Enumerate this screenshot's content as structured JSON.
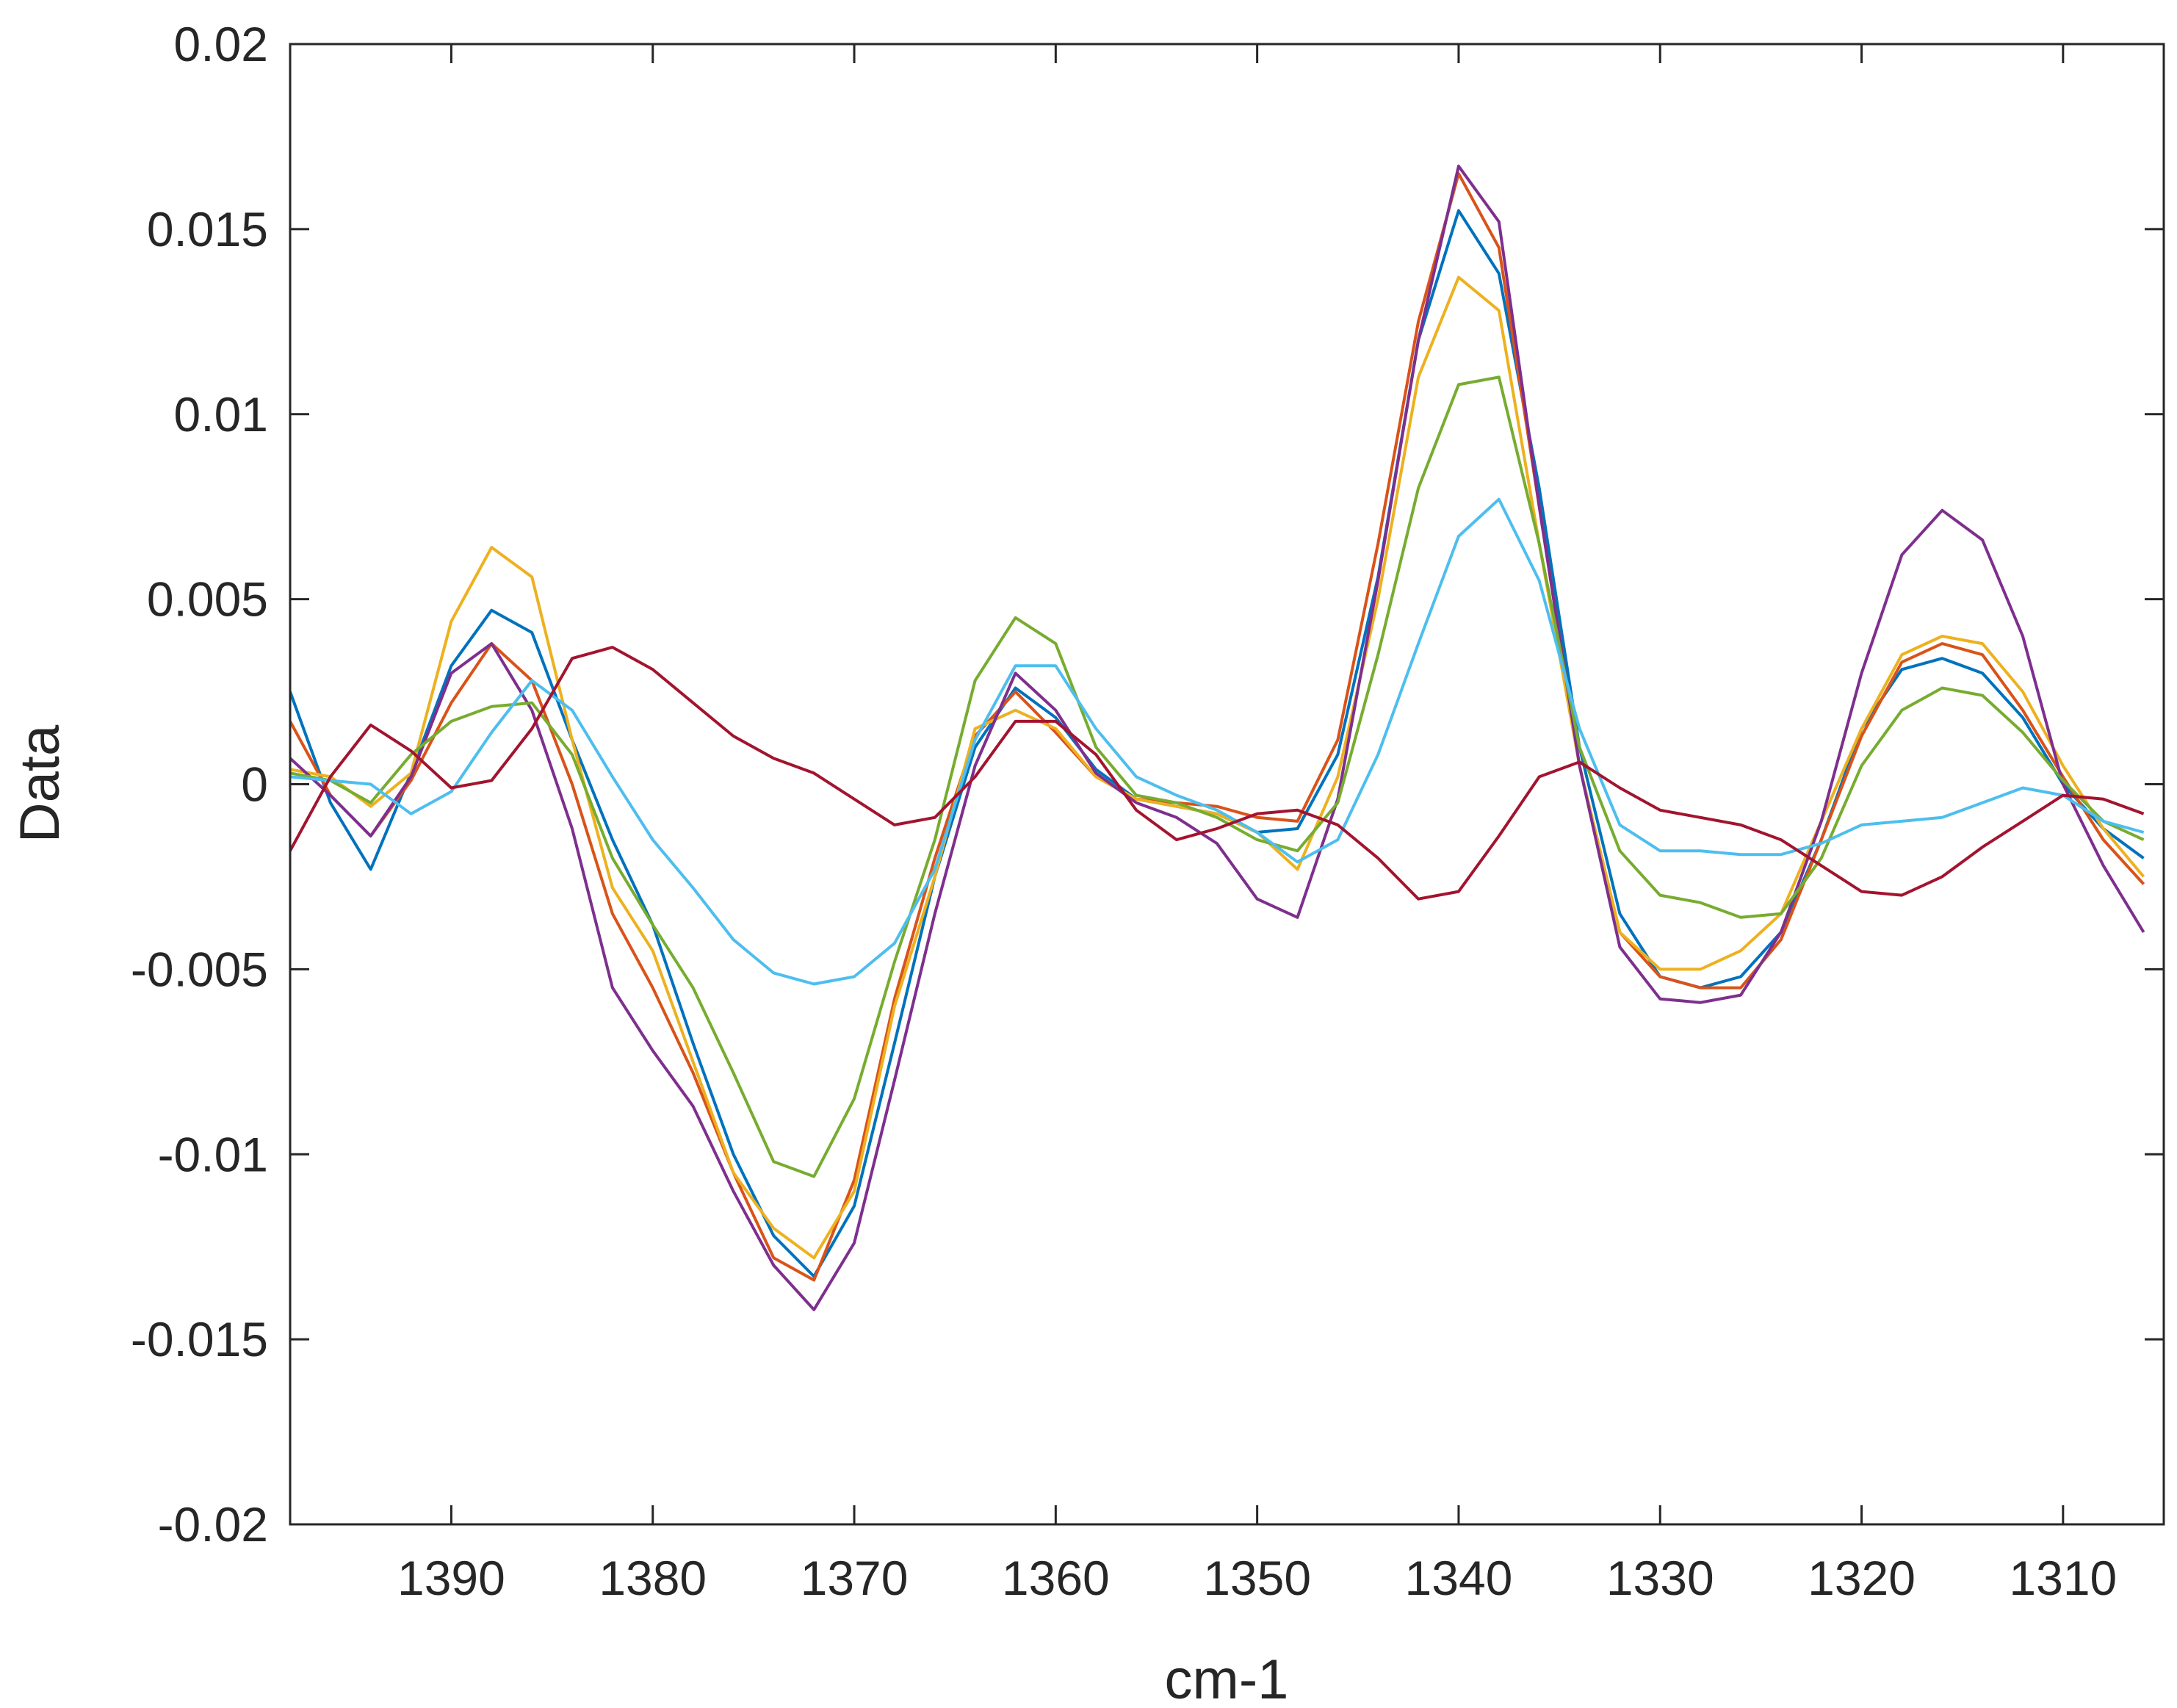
{
  "chart_data": {
    "type": "line",
    "title": "",
    "xlabel": "cm-1",
    "ylabel": "Data",
    "xlim": [
      1398,
      1305
    ],
    "x_reversed": true,
    "ylim": [
      -0.02,
      0.02
    ],
    "grid": false,
    "legend": null,
    "xticks": [
      1390,
      1380,
      1370,
      1360,
      1350,
      1340,
      1330,
      1320,
      1310
    ],
    "yticks": [
      -0.02,
      -0.015,
      -0.01,
      -0.005,
      0,
      0.005,
      0.01,
      0.015,
      0.02
    ],
    "yticklabels": [
      "-0.02",
      "-0.015",
      "-0.01",
      "-0.005",
      "0",
      "0.005",
      "0.01",
      "0.015",
      "0.02"
    ],
    "x": [
      1398,
      1396,
      1394,
      1392,
      1390,
      1388,
      1386,
      1384,
      1382,
      1380,
      1378,
      1376,
      1374,
      1372,
      1370,
      1368,
      1366,
      1364,
      1362,
      1360,
      1358,
      1356,
      1354,
      1352,
      1350,
      1348,
      1346,
      1344,
      1342,
      1340,
      1338,
      1336,
      1334,
      1332,
      1330,
      1328,
      1326,
      1324,
      1322,
      1320,
      1318,
      1316,
      1314,
      1312,
      1310,
      1308,
      1306
    ],
    "series": [
      {
        "name": "series 1",
        "color": "#0072BD",
        "values": [
          0.0025,
          -0.0005,
          -0.0023,
          0.0003,
          0.0032,
          0.0047,
          0.0041,
          0.0012,
          -0.0015,
          -0.0038,
          -0.007,
          -0.01,
          -0.0122,
          -0.0133,
          -0.0114,
          -0.007,
          -0.0025,
          0.001,
          0.0026,
          0.0018,
          0.0004,
          -0.0004,
          -0.0006,
          -0.0008,
          -0.0013,
          -0.0012,
          0.0008,
          0.0056,
          0.012,
          0.0155,
          0.0138,
          0.008,
          0.001,
          -0.0035,
          -0.0052,
          -0.0055,
          -0.0052,
          -0.004,
          -0.0015,
          0.0015,
          0.0031,
          0.0034,
          0.003,
          0.0018,
          0.0,
          -0.0012,
          -0.002
        ]
      },
      {
        "name": "series 2",
        "color": "#D95319",
        "values": [
          0.0017,
          -0.0003,
          -0.0014,
          0.0001,
          0.0022,
          0.0038,
          0.0028,
          0.0,
          -0.0035,
          -0.0055,
          -0.0078,
          -0.0105,
          -0.0128,
          -0.0134,
          -0.0107,
          -0.0058,
          -0.002,
          0.0013,
          0.0025,
          0.0014,
          0.0002,
          -0.0004,
          -0.0005,
          -0.0006,
          -0.0009,
          -0.001,
          0.0012,
          0.0065,
          0.0125,
          0.0165,
          0.0145,
          0.0075,
          0.0005,
          -0.004,
          -0.0052,
          -0.0055,
          -0.0055,
          -0.0042,
          -0.0015,
          0.0013,
          0.0033,
          0.0038,
          0.0035,
          0.002,
          0.0002,
          -0.0015,
          -0.0027
        ]
      },
      {
        "name": "series 3",
        "color": "#EDB120",
        "values": [
          0.0004,
          0.0002,
          -0.0006,
          0.0003,
          0.0044,
          0.0064,
          0.0056,
          0.0012,
          -0.0028,
          -0.0045,
          -0.0075,
          -0.0105,
          -0.012,
          -0.0128,
          -0.011,
          -0.006,
          -0.0025,
          0.0015,
          0.002,
          0.0015,
          0.0002,
          -0.0004,
          -0.0006,
          -0.0008,
          -0.0013,
          -0.0023,
          0.0002,
          0.005,
          0.011,
          0.0137,
          0.0128,
          0.0065,
          0.0005,
          -0.004,
          -0.005,
          -0.005,
          -0.0045,
          -0.0035,
          -0.001,
          0.0015,
          0.0035,
          0.004,
          0.0038,
          0.0025,
          0.0005,
          -0.0012,
          -0.0025
        ]
      },
      {
        "name": "series 4",
        "color": "#7E2F8E",
        "values": [
          0.0007,
          -0.0003,
          -0.0014,
          0.0002,
          0.003,
          0.0038,
          0.002,
          -0.0012,
          -0.0055,
          -0.0072,
          -0.0087,
          -0.011,
          -0.013,
          -0.0142,
          -0.0124,
          -0.008,
          -0.0035,
          0.0005,
          0.003,
          0.002,
          0.0003,
          -0.0005,
          -0.0009,
          -0.0016,
          -0.0031,
          -0.0036,
          -0.0004,
          0.0055,
          0.012,
          0.0167,
          0.0152,
          0.0075,
          0.0005,
          -0.0044,
          -0.0058,
          -0.0059,
          -0.0057,
          -0.004,
          -0.001,
          0.003,
          0.0062,
          0.0074,
          0.0066,
          0.004,
          0.0,
          -0.0022,
          -0.004
        ]
      },
      {
        "name": "series 5",
        "color": "#77AC30",
        "values": [
          0.0003,
          0.0001,
          -0.0005,
          0.0008,
          0.0017,
          0.0021,
          0.0022,
          0.0008,
          -0.002,
          -0.0038,
          -0.0055,
          -0.0078,
          -0.0102,
          -0.0106,
          -0.0085,
          -0.0048,
          -0.0015,
          0.0028,
          0.0045,
          0.0038,
          0.001,
          -0.0003,
          -0.0005,
          -0.0009,
          -0.0015,
          -0.0018,
          -0.0005,
          0.0035,
          0.008,
          0.0108,
          0.011,
          0.0065,
          0.001,
          -0.0018,
          -0.003,
          -0.0032,
          -0.0036,
          -0.0035,
          -0.002,
          0.0005,
          0.002,
          0.0026,
          0.0024,
          0.0014,
          0.0001,
          -0.001,
          -0.0015
        ]
      },
      {
        "name": "series 6",
        "color": "#4DBEEE",
        "values": [
          0.0002,
          0.0001,
          0.0,
          -0.0008,
          -0.0002,
          0.0014,
          0.0028,
          0.002,
          0.0002,
          -0.0015,
          -0.0028,
          -0.0042,
          -0.0051,
          -0.0054,
          -0.0052,
          -0.0043,
          -0.0023,
          0.0012,
          0.0032,
          0.0032,
          0.0015,
          0.0002,
          -0.0003,
          -0.0007,
          -0.0013,
          -0.0021,
          -0.0015,
          0.0008,
          0.0038,
          0.0067,
          0.0077,
          0.0055,
          0.0015,
          -0.0011,
          -0.0018,
          -0.0018,
          -0.0019,
          -0.0019,
          -0.0016,
          -0.0011,
          -0.001,
          -0.0009,
          -0.0005,
          -0.0001,
          -0.0003,
          -0.001,
          -0.0013
        ]
      },
      {
        "name": "series 7",
        "color": "#A2142F",
        "values": [
          -0.0018,
          0.0002,
          0.0016,
          0.0009,
          -0.0001,
          0.0001,
          0.0015,
          0.0034,
          0.0037,
          0.0031,
          0.0022,
          0.0013,
          0.0007,
          0.0003,
          -0.0004,
          -0.0011,
          -0.0009,
          0.0002,
          0.0017,
          0.0017,
          0.0008,
          -0.0007,
          -0.0015,
          -0.0012,
          -0.0008,
          -0.0007,
          -0.0011,
          -0.002,
          -0.0031,
          -0.0029,
          -0.0014,
          0.0002,
          0.0006,
          -0.0001,
          -0.0007,
          -0.0009,
          -0.0011,
          -0.0015,
          -0.0022,
          -0.0029,
          -0.003,
          -0.0025,
          -0.0017,
          -0.001,
          -0.0003,
          -0.0004,
          -0.0008
        ]
      }
    ]
  }
}
